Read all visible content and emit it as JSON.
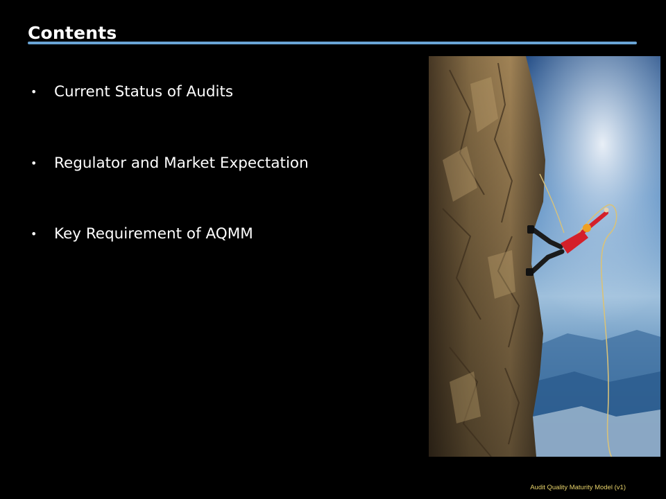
{
  "slide": {
    "title": "Contents",
    "bullets": [
      {
        "marker": "•",
        "text": "Current Status of Audits"
      },
      {
        "marker": "•",
        "text": "Regulator and Market Expectation"
      },
      {
        "marker": "•",
        "text": "Key Requirement of AQMM"
      }
    ],
    "image": {
      "subject": "climber-on-cliff-illustration"
    },
    "footer": "Audit Quality Maturity Model (v1)"
  },
  "colors": {
    "background": "#000000",
    "title_rule": "#6aa5d6",
    "text": "#ffffff",
    "footer": "#e8d36a"
  }
}
